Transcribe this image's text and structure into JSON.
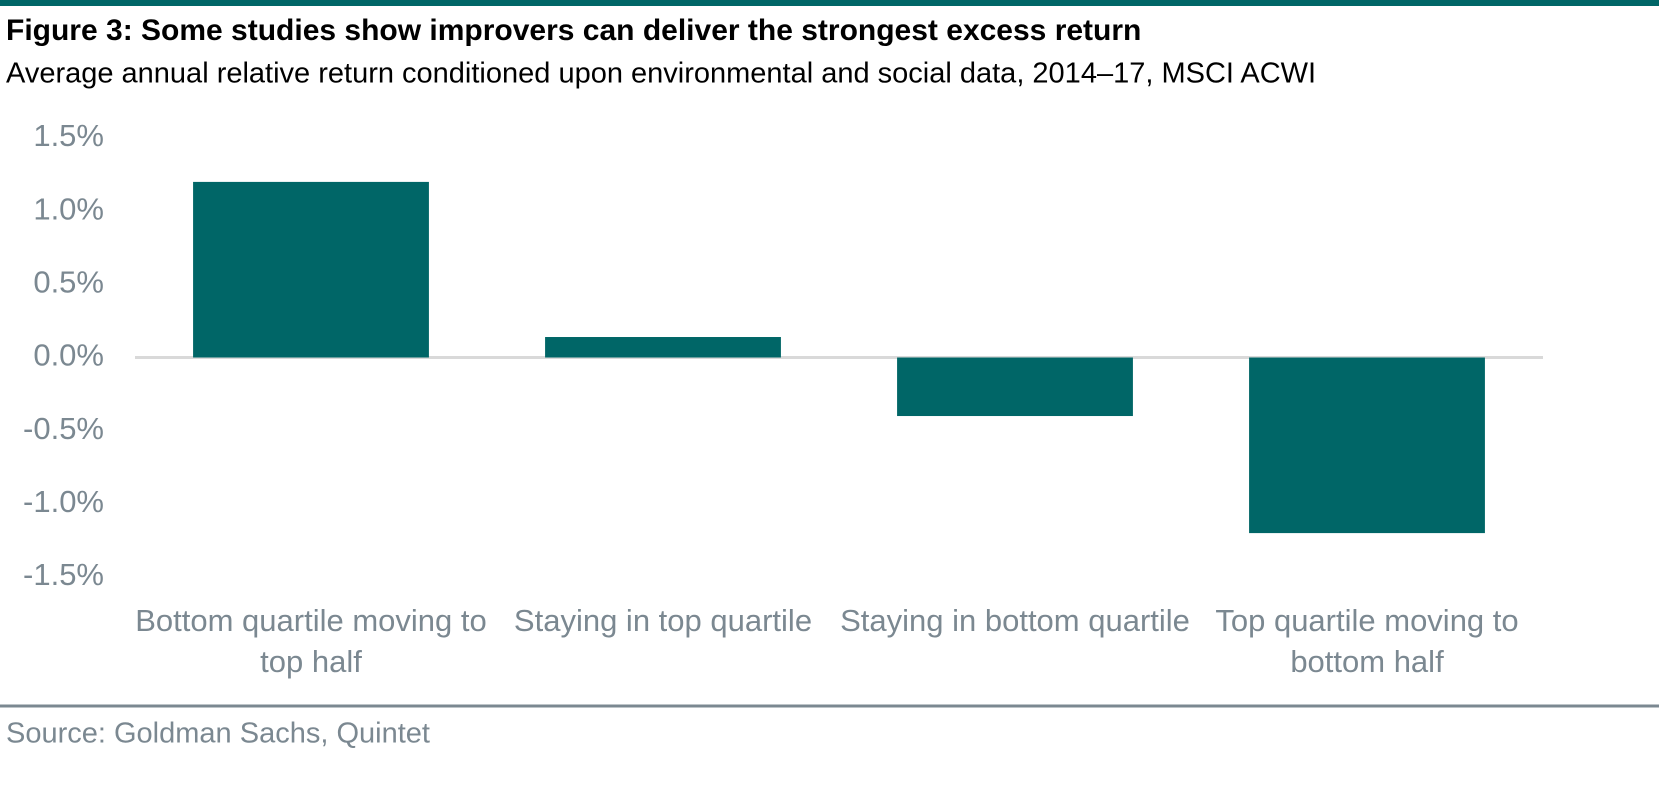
{
  "chart_data": {
    "type": "bar",
    "title": "Figure 3: Some studies show improvers can deliver the strongest excess return",
    "subtitle": "Average annual relative return conditioned upon environmental and social data, 2014–17, MSCI ACWI",
    "categories": [
      "Bottom quartile moving to top half",
      "Staying in top quartile",
      "Staying in bottom quartile",
      "Top quartile moving to bottom half"
    ],
    "values": [
      1.2,
      0.14,
      -0.4,
      -1.2
    ],
    "color": "#006667",
    "ylim": [
      -1.5,
      1.5
    ],
    "yticks": [
      {
        "value": 1.5,
        "label": "1.5%"
      },
      {
        "value": 1.0,
        "label": "1.0%"
      },
      {
        "value": 0.5,
        "label": "0.5%"
      },
      {
        "value": 0,
        "label": "0.0%"
      },
      {
        "value": -0.5,
        "label": "-0.5%"
      },
      {
        "value": -1.0,
        "label": "-1.0%"
      },
      {
        "value": -1.5,
        "label": "-1.5%"
      }
    ],
    "grid": false,
    "source": "Source: Goldman Sachs, Quintet"
  }
}
